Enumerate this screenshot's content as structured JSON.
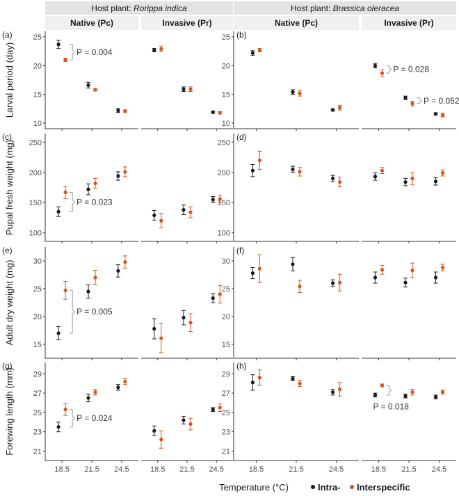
{
  "chart_data": {
    "type": "scatter",
    "host_plant_prefix": "Host plant: ",
    "host_plants": [
      "Rorippa indica",
      "Brassica oleracea"
    ],
    "populations": [
      "Native (Pc)",
      "Invasive (Pr)"
    ],
    "categories": [
      "18.5",
      "21.5",
      "24.5"
    ],
    "xlabel": "Temperature (°C)",
    "legend": [
      {
        "name": "Intra-",
        "color": "#1a1a1a"
      },
      {
        "name": "Interspecific",
        "color": "#d4541c"
      }
    ],
    "rows": [
      {
        "ylabel": "Larval period (day)",
        "ylim": [
          10,
          25
        ],
        "ticks": [
          10,
          15,
          20,
          25
        ],
        "panel_labels": [
          "(a)",
          "(b)"
        ],
        "panels": [
          [
            {
              "intra": [
                [
                  23.7,
                  0.7
                ],
                [
                  16.6,
                  0.5
                ],
                [
                  12.2,
                  0.35
                ]
              ],
              "inter": [
                [
                  21.0,
                  0.3
                ],
                [
                  15.8,
                  0.2
                ],
                [
                  12.1,
                  0.2
                ]
              ],
              "annotations": [
                {
                  "text": "P = 0.004",
                  "cat": 0
                }
              ]
            },
            {
              "intra": [
                [
                  22.7,
                  0.3
                ],
                [
                  15.9,
                  0.4
                ],
                [
                  11.9,
                  0.2
                ]
              ],
              "inter": [
                [
                  22.9,
                  0.5
                ],
                [
                  15.9,
                  0.4
                ],
                [
                  11.8,
                  0.2
                ]
              ],
              "annotations": []
            }
          ],
          [
            {
              "intra": [
                [
                  22.2,
                  0.4
                ],
                [
                  15.4,
                  0.4
                ],
                [
                  12.3,
                  0.2
                ]
              ],
              "inter": [
                [
                  22.7,
                  0.3
                ],
                [
                  15.2,
                  0.5
                ],
                [
                  12.7,
                  0.4
                ]
              ],
              "annotations": []
            },
            {
              "intra": [
                [
                  20.0,
                  0.4
                ],
                [
                  14.4,
                  0.3
                ],
                [
                  11.6,
                  0.2
                ]
              ],
              "inter": [
                [
                  18.7,
                  0.6
                ],
                [
                  13.4,
                  0.4
                ],
                [
                  11.4,
                  0.3
                ]
              ],
              "annotations": [
                {
                  "text": "P = 0.028",
                  "cat": 0
                },
                {
                  "text": "P = 0.052",
                  "cat": 1
                }
              ]
            }
          ]
        ]
      },
      {
        "ylabel": "Pupal fresh weight (mg)",
        "ylim": [
          95,
          255
        ],
        "ticks": [
          100,
          150,
          200,
          250
        ],
        "panel_labels": [
          "(c)",
          "(d)"
        ],
        "panels": [
          [
            {
              "intra": [
                [
                  135,
                  8
                ],
                [
                  172,
                  9
                ],
                [
                  194,
                  7
                ]
              ],
              "inter": [
                [
                  167,
                  10
                ],
                [
                  182,
                  8
                ],
                [
                  201,
                  8
                ]
              ],
              "annotations": [
                {
                  "text": "P = 0.023",
                  "cat": 0
                }
              ]
            },
            {
              "intra": [
                [
                  129,
                  8
                ],
                [
                  138,
                  8
                ],
                [
                  155,
                  5
                ]
              ],
              "inter": [
                [
                  120,
                  12
                ],
                [
                  134,
                  9
                ],
                [
                  156,
                  6
                ]
              ],
              "annotations": []
            }
          ],
          [
            {
              "intra": [
                [
                  203,
                  10
                ],
                [
                  205,
                  5
                ],
                [
                  190,
                  5
                ]
              ],
              "inter": [
                [
                  220,
                  15
                ],
                [
                  201,
                  7
                ],
                [
                  184,
                  8
                ]
              ],
              "annotations": []
            },
            {
              "intra": [
                [
                  193,
                  6
                ],
                [
                  184,
                  6
                ],
                [
                  185,
                  6
                ]
              ],
              "inter": [
                [
                  203,
                  5
                ],
                [
                  190,
                  10
                ],
                [
                  199,
                  5
                ]
              ],
              "annotations": []
            }
          ]
        ]
      },
      {
        "ylabel": "Adult dry weight (mg)",
        "ylim": [
          13.5,
          31.5
        ],
        "ticks": [
          15,
          20,
          25,
          30
        ],
        "panel_labels": [
          "(e)",
          "(f)"
        ],
        "panels": [
          [
            {
              "intra": [
                [
                  17.0,
                  1.2
                ],
                [
                  24.5,
                  1.2
                ],
                [
                  28.2,
                  1.1
                ]
              ],
              "inter": [
                [
                  24.7,
                  1.6
                ],
                [
                  27.0,
                  1.3
                ],
                [
                  29.8,
                  1.1
                ]
              ],
              "annotations": [
                {
                  "text": "P = 0.005",
                  "cat": 0
                }
              ]
            },
            {
              "intra": [
                [
                  17.8,
                  1.8
                ],
                [
                  19.8,
                  1.3
                ],
                [
                  23.3,
                  0.8
                ]
              ],
              "inter": [
                [
                  16.1,
                  2.6
                ],
                [
                  18.9,
                  1.6
                ],
                [
                  24.0,
                  1.6
                ]
              ],
              "annotations": []
            }
          ],
          [
            {
              "intra": [
                [
                  27.8,
                  1.0
                ],
                [
                  29.4,
                  1.2
                ],
                [
                  26.0,
                  0.6
                ]
              ],
              "inter": [
                [
                  28.6,
                  2.5
                ],
                [
                  25.4,
                  1.1
                ],
                [
                  26.1,
                  1.5
                ]
              ],
              "annotations": []
            },
            {
              "intra": [
                [
                  27.0,
                  1.0
                ],
                [
                  26.1,
                  0.8
                ],
                [
                  27.0,
                  1.0
                ]
              ],
              "inter": [
                [
                  28.4,
                  0.8
                ],
                [
                  28.3,
                  1.3
                ],
                [
                  28.8,
                  0.6
                ]
              ],
              "annotations": []
            }
          ]
        ]
      },
      {
        "ylabel": "Forewing length (mm)",
        "ylim": [
          20.6,
          29.6
        ],
        "ticks": [
          21,
          23,
          25,
          27,
          29
        ],
        "panel_labels": [
          "(g)",
          "(h)"
        ],
        "panels": [
          [
            {
              "intra": [
                [
                  23.5,
                  0.5
                ],
                [
                  26.5,
                  0.4
                ],
                [
                  27.6,
                  0.3
                ]
              ],
              "inter": [
                [
                  25.3,
                  0.6
                ],
                [
                  27.1,
                  0.3
                ],
                [
                  28.2,
                  0.3
                ]
              ],
              "annotations": [
                {
                  "text": "P = 0.024",
                  "cat": 0
                }
              ]
            },
            {
              "intra": [
                [
                  23.1,
                  0.5
                ],
                [
                  24.2,
                  0.4
                ],
                [
                  25.3,
                  0.2
                ]
              ],
              "inter": [
                [
                  22.2,
                  0.9
                ],
                [
                  23.8,
                  0.6
                ],
                [
                  25.5,
                  0.4
                ]
              ],
              "annotations": []
            }
          ],
          [
            {
              "intra": [
                [
                  28.1,
                  0.8
                ],
                [
                  28.5,
                  0.2
                ],
                [
                  27.1,
                  0.3
                ]
              ],
              "inter": [
                [
                  28.6,
                  0.8
                ],
                [
                  28.0,
                  0.3
                ],
                [
                  27.4,
                  0.7
                ]
              ],
              "annotations": []
            },
            {
              "intra": [
                [
                  26.8,
                  0.2
                ],
                [
                  26.7,
                  0.2
                ],
                [
                  26.6,
                  0.2
                ]
              ],
              "inter": [
                [
                  27.8,
                  0.15
                ],
                [
                  27.1,
                  0.3
                ],
                [
                  27.1,
                  0.2
                ]
              ],
              "annotations": [
                {
                  "text": "P = 0.018",
                  "cat": 0
                }
              ]
            }
          ]
        ]
      }
    ]
  }
}
